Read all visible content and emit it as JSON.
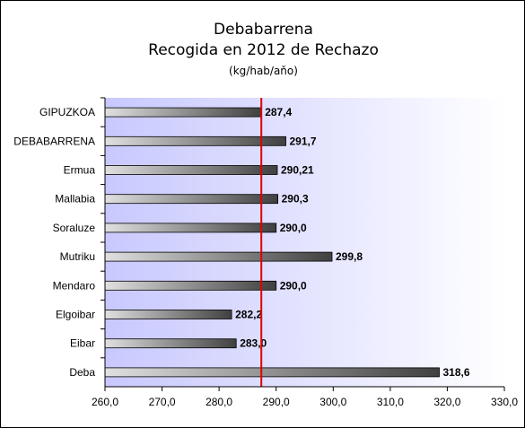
{
  "chart_data": {
    "type": "bar",
    "orientation": "horizontal",
    "title": "Debabarrena",
    "subtitle": "Recogida en 2012 de Rechazo",
    "unit": "(kg/hab/aňo)",
    "categories": [
      "GIPUZKOA",
      "DEBABARRENA",
      "Ermua",
      "Mallabia",
      "Soraluze",
      "Mutriku",
      "Mendaro",
      "Elgoibar",
      "Eibar",
      "Deba"
    ],
    "values": [
      287.4,
      291.7,
      290.21,
      290.3,
      290.0,
      299.8,
      290.0,
      282.2,
      283.0,
      318.6
    ],
    "value_labels": [
      "287,4",
      "291,7",
      "290,21",
      "290,3",
      "290,0",
      "299,8",
      "290,0",
      "282,2",
      "283,0",
      "318,6"
    ],
    "xlim": [
      260,
      330
    ],
    "x_ticks": [
      "260,0",
      "270,0",
      "280,0",
      "290,0",
      "300,0",
      "310,0",
      "320,0",
      "330,0"
    ],
    "reference_line": {
      "value": 287.4,
      "color": "#e00000"
    },
    "grid": false,
    "legend": "none",
    "colors": {
      "plot_gradient_start": "#c8c8ff",
      "plot_gradient_end": "#ffffff",
      "bar_light": "#e0e0e0",
      "bar_dark": "#404040"
    }
  }
}
